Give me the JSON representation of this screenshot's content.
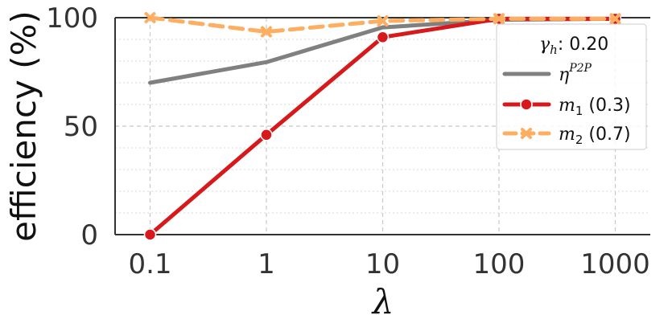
{
  "chart_data": {
    "type": "line",
    "x_scale": "log",
    "categories": [
      "0.1",
      "1",
      "10",
      "100",
      "1000"
    ],
    "x": [
      0.1,
      1,
      10,
      100,
      1000
    ],
    "xlabel": "λ",
    "ylabel": "efficiency (%)",
    "ylim": [
      0,
      100
    ],
    "yticks": [
      "0",
      "50",
      "100"
    ],
    "grid": true,
    "legend_position": "right",
    "legend_title": "γ_h: 0.20",
    "legend_title_symbol": "γ",
    "legend_title_sub": "h",
    "legend_title_value": ": 0.20",
    "series": [
      {
        "name": "η^P2P",
        "name_base": "η",
        "name_sup": "P2P",
        "name_tail": "",
        "values": [
          70,
          79.5,
          95.5,
          99,
          99.5
        ],
        "color": "#808080",
        "style": "solid",
        "marker": "none"
      },
      {
        "name": "m1 (0.3)",
        "name_base": "m",
        "name_sub": "1",
        "name_tail": " (0.3)",
        "values": [
          0,
          46,
          91,
          99.5,
          99.5
        ],
        "color": "#d7191c",
        "style": "solid",
        "marker": "circle"
      },
      {
        "name": "m2 (0.7)",
        "name_base": "m",
        "name_sub": "2",
        "name_tail": " (0.7)",
        "values": [
          100,
          93.5,
          98.5,
          99.5,
          99.5
        ],
        "color": "#fdae61",
        "style": "dashed",
        "marker": "x"
      }
    ]
  }
}
